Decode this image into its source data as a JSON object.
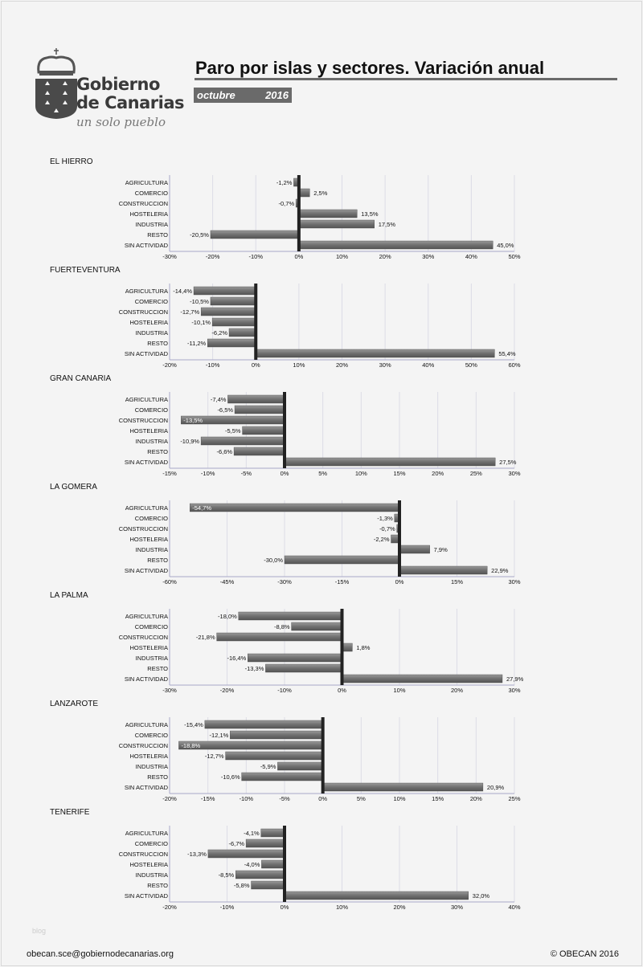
{
  "header": {
    "logo": {
      "name": "Gobierno de Canarias",
      "line1": "Gobierno",
      "line2": "de Canarias",
      "motto": "un solo pueblo"
    },
    "title": "Paro por islas y sectores. Variación anual",
    "month": "octubre",
    "year": "2016"
  },
  "colors": {
    "bar": "#707070",
    "zero_line": "#222222",
    "grid": "#dcdce6",
    "title_rule": "#6a6a6a"
  },
  "chart_data": [
    {
      "type": "bar",
      "orientation": "horizontal",
      "title": "EL HIERRO",
      "categories": [
        "AGRICULTURA",
        "COMERCIO",
        "CONSTRUCCION",
        "HOSTELERIA",
        "INDUSTRIA",
        "RESTO",
        "SIN ACTIVIDAD"
      ],
      "values": [
        -1.2,
        2.5,
        -0.7,
        13.5,
        17.5,
        -20.5,
        45.0
      ],
      "labels": [
        "-1,2%",
        "2,5%",
        "-0,7%",
        "13,5%",
        "17,5%",
        "-20,5%",
        "45,0%"
      ],
      "xlim": [
        -30,
        50
      ],
      "ticks": [
        -30,
        -20,
        -10,
        0,
        10,
        20,
        30,
        40,
        50
      ],
      "tick_labels": [
        "-30%",
        "-20%",
        "-10%",
        "0%",
        "10%",
        "20%",
        "30%",
        "40%",
        "50%"
      ],
      "grid": true
    },
    {
      "type": "bar",
      "orientation": "horizontal",
      "title": "FUERTEVENTURA",
      "categories": [
        "AGRICULTURA",
        "COMERCIO",
        "CONSTRUCCION",
        "HOSTELERIA",
        "INDUSTRIA",
        "RESTO",
        "SIN ACTIVIDAD"
      ],
      "values": [
        -14.4,
        -10.5,
        -12.7,
        -10.1,
        -6.2,
        -11.2,
        55.4
      ],
      "labels": [
        "-14,4%",
        "-10,5%",
        "-12,7%",
        "-10,1%",
        "-6,2%",
        "-11,2%",
        "55,4%"
      ],
      "xlim": [
        -20,
        60
      ],
      "ticks": [
        -20,
        -10,
        0,
        10,
        20,
        30,
        40,
        50,
        60
      ],
      "tick_labels": [
        "-20%",
        "-10%",
        "0%",
        "10%",
        "20%",
        "30%",
        "40%",
        "50%",
        "60%"
      ],
      "grid": true
    },
    {
      "type": "bar",
      "orientation": "horizontal",
      "title": "GRAN CANARIA",
      "categories": [
        "AGRICULTURA",
        "COMERCIO",
        "CONSTRUCCION",
        "HOSTELERIA",
        "INDUSTRIA",
        "RESTO",
        "SIN ACTIVIDAD"
      ],
      "values": [
        -7.4,
        -6.5,
        -13.5,
        -5.5,
        -10.9,
        -6.6,
        27.5
      ],
      "labels": [
        "-7,4%",
        "-6,5%",
        "-13,5%",
        "-5,5%",
        "-10,9%",
        "-6,6%",
        "27,5%"
      ],
      "xlim": [
        -15,
        30
      ],
      "ticks": [
        -15,
        -10,
        -5,
        0,
        5,
        10,
        15,
        20,
        25,
        30
      ],
      "tick_labels": [
        "-15%",
        "-10%",
        "-5%",
        "0%",
        "5%",
        "10%",
        "15%",
        "20%",
        "25%",
        "30%"
      ],
      "grid": true
    },
    {
      "type": "bar",
      "orientation": "horizontal",
      "title": "LA GOMERA",
      "categories": [
        "AGRICULTURA",
        "COMERCIO",
        "CONSTRUCCION",
        "HOSTELERIA",
        "INDUSTRIA",
        "RESTO",
        "SIN ACTIVIDAD"
      ],
      "values": [
        -54.7,
        -1.3,
        -0.7,
        -2.2,
        7.9,
        -30.0,
        22.9
      ],
      "labels": [
        "-54,7%",
        "-1,3%",
        "-0,7%",
        "-2,2%",
        "7,9%",
        "-30,0%",
        "22,9%"
      ],
      "xlim": [
        -60,
        30
      ],
      "ticks": [
        -60,
        -45,
        -30,
        -15,
        0,
        15,
        30
      ],
      "tick_labels": [
        "-60%",
        "-45%",
        "-30%",
        "-15%",
        "0%",
        "15%",
        "30%"
      ],
      "grid": true
    },
    {
      "type": "bar",
      "orientation": "horizontal",
      "title": "LA PALMA",
      "categories": [
        "AGRICULTURA",
        "COMERCIO",
        "CONSTRUCCION",
        "HOSTELERIA",
        "INDUSTRIA",
        "RESTO",
        "SIN ACTIVIDAD"
      ],
      "values": [
        -18.0,
        -8.8,
        -21.8,
        1.8,
        -16.4,
        -13.3,
        27.9
      ],
      "labels": [
        "-18,0%",
        "-8,8%",
        "-21,8%",
        "1,8%",
        "-16,4%",
        "-13,3%",
        "27,9%"
      ],
      "xlim": [
        -30,
        30
      ],
      "ticks": [
        -30,
        -20,
        -10,
        0,
        10,
        20,
        30
      ],
      "tick_labels": [
        "-30%",
        "-20%",
        "-10%",
        "0%",
        "10%",
        "20%",
        "30%"
      ],
      "grid": true
    },
    {
      "type": "bar",
      "orientation": "horizontal",
      "title": "LANZAROTE",
      "categories": [
        "AGRICULTURA",
        "COMERCIO",
        "CONSTRUCCION",
        "HOSTELERIA",
        "INDUSTRIA",
        "RESTO",
        "SIN ACTIVIDAD"
      ],
      "values": [
        -15.4,
        -12.1,
        -18.8,
        -12.7,
        -5.9,
        -10.6,
        20.9
      ],
      "labels": [
        "-15,4%",
        "-12,1%",
        "-18,8%",
        "-12,7%",
        "-5,9%",
        "-10,6%",
        "20,9%"
      ],
      "xlim": [
        -20,
        25
      ],
      "ticks": [
        -20,
        -15,
        -10,
        -5,
        0,
        5,
        10,
        15,
        20,
        25
      ],
      "tick_labels": [
        "-20%",
        "-15%",
        "-10%",
        "-5%",
        "0%",
        "5%",
        "10%",
        "15%",
        "20%",
        "25%"
      ],
      "grid": true
    },
    {
      "type": "bar",
      "orientation": "horizontal",
      "title": "TENERIFE",
      "categories": [
        "AGRICULTURA",
        "COMERCIO",
        "CONSTRUCCION",
        "HOSTELERIA",
        "INDUSTRIA",
        "RESTO",
        "SIN ACTIVIDAD"
      ],
      "values": [
        -4.1,
        -6.7,
        -13.3,
        -4.0,
        -8.5,
        -5.8,
        32.0
      ],
      "labels": [
        "-4,1%",
        "-6,7%",
        "-13,3%",
        "-4,0%",
        "-8,5%",
        "-5,8%",
        "32,0%"
      ],
      "xlim": [
        -20,
        40
      ],
      "ticks": [
        -20,
        -10,
        0,
        10,
        20,
        30,
        40
      ],
      "tick_labels": [
        "-20%",
        "-10%",
        "0%",
        "10%",
        "20%",
        "30%",
        "40%"
      ],
      "grid": true
    }
  ],
  "footer": {
    "watermark": "blog",
    "email": "obecan.sce@gobiernodecanarias.org",
    "copyright": "© OBECAN 2016"
  }
}
